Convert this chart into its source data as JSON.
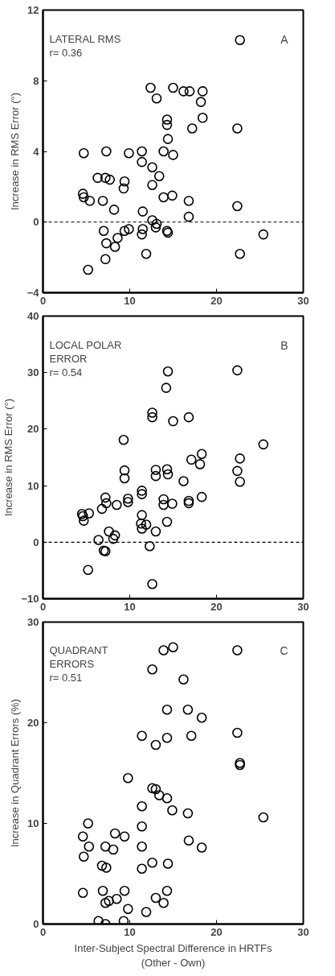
{
  "chart_data": [
    {
      "type": "scatter",
      "ylabel": "Increase in RMS Error (°)",
      "annotations": [
        "LATERAL RMS",
        "r= 0.36",
        "A"
      ],
      "marker": "circle",
      "grid": false,
      "xlim": [
        0,
        30
      ],
      "xticks": [
        0,
        10,
        20,
        30
      ],
      "ylim": [
        -4,
        12
      ],
      "yticks": [
        -4,
        0,
        4,
        8,
        12
      ],
      "ref_lines": [
        {
          "axis": "y",
          "value": 0,
          "line_style": "dashed"
        }
      ],
      "series": [
        {
          "color": "#000000",
          "x": [
            22.7,
            12.4,
            15.0,
            16.2,
            16.9,
            18.4,
            13.1,
            18.2,
            18.4,
            14.3,
            14.3,
            17.2,
            22.4,
            14.4,
            4.7,
            7.3,
            9.9,
            11.4,
            13.9,
            15.0,
            11.4,
            12.6,
            13.4,
            6.3,
            7.2,
            7.7,
            9.4,
            9.3,
            12.6,
            4.6,
            4.7,
            5.4,
            6.9,
            13.9,
            14.9,
            16.8,
            22.4,
            8.2,
            11.5,
            16.8,
            12.6,
            13.1,
            13.0,
            7.0,
            9.4,
            9.9,
            11.5,
            14.3,
            14.4,
            11.4,
            25.4,
            8.6,
            7.3,
            8.3,
            11.9,
            22.7,
            7.2,
            5.2
          ],
          "values": [
            10.3,
            7.6,
            7.6,
            7.4,
            7.4,
            7.4,
            7.0,
            6.8,
            5.9,
            5.8,
            5.5,
            5.3,
            5.3,
            4.7,
            3.9,
            4.0,
            3.9,
            4.0,
            4.0,
            3.8,
            3.4,
            3.1,
            2.6,
            2.5,
            2.5,
            2.4,
            2.3,
            1.9,
            2.1,
            1.6,
            1.4,
            1.2,
            1.2,
            1.4,
            1.5,
            1.2,
            0.9,
            0.7,
            0.6,
            0.3,
            0.1,
            -0.1,
            -0.3,
            -0.5,
            -0.5,
            -0.4,
            -0.4,
            -0.5,
            -0.6,
            -0.7,
            -0.7,
            -0.9,
            -1.2,
            -1.4,
            -1.8,
            -1.8,
            -2.1,
            -2.7
          ]
        }
      ]
    },
    {
      "type": "scatter",
      "ylabel": "Increase in RMS Error (°)",
      "annotations": [
        "LOCAL POLAR ERROR",
        "r= 0.54",
        "B"
      ],
      "marker": "circle",
      "grid": false,
      "xlim": [
        0,
        30
      ],
      "xticks": [
        0,
        10,
        20,
        30
      ],
      "ylim": [
        -10,
        40
      ],
      "yticks": [
        -10,
        0,
        10,
        20,
        30,
        40
      ],
      "ref_lines": [
        {
          "axis": "y",
          "value": 0,
          "line_style": "dashed"
        }
      ],
      "series": [
        {
          "color": "#000000",
          "x": [
            14.4,
            22.4,
            14.2,
            12.6,
            12.6,
            16.8,
            15.0,
            9.3,
            25.4,
            18.3,
            17.1,
            22.7,
            18.1,
            9.4,
            13.0,
            14.3,
            22.4,
            14.4,
            13.0,
            9.4,
            22.7,
            16.2,
            11.4,
            11.4,
            7.2,
            9.8,
            9.8,
            18.3,
            13.9,
            13.9,
            14.9,
            16.8,
            16.8,
            7.3,
            8.5,
            6.8,
            5.3,
            4.5,
            4.6,
            4.7,
            11.4,
            14.3,
            11.3,
            11.9,
            11.4,
            13.0,
            7.6,
            8.3,
            8.1,
            6.4,
            12.3,
            7.0,
            7.2,
            5.2,
            12.6
          ],
          "values": [
            30.2,
            30.4,
            27.3,
            22.9,
            22.1,
            22.1,
            21.4,
            18.1,
            17.3,
            15.6,
            14.6,
            14.8,
            13.8,
            12.7,
            12.8,
            12.9,
            12.6,
            12.0,
            11.7,
            11.3,
            10.7,
            10.8,
            9.1,
            8.5,
            7.9,
            7.7,
            7.1,
            8.0,
            7.6,
            6.6,
            6.8,
            7.3,
            6.9,
            6.9,
            6.6,
            5.9,
            5.1,
            5.0,
            4.6,
            3.8,
            4.8,
            3.6,
            3.3,
            3.1,
            2.4,
            1.9,
            1.9,
            1.2,
            0.6,
            0.4,
            -0.7,
            -1.5,
            -1.6,
            -4.9,
            -7.4
          ]
        }
      ]
    },
    {
      "type": "scatter",
      "ylabel": "Increase in Quadrant Errors (%)",
      "xlabel": "Inter-Subject Spectral Difference in HRTFs\n(Other - Own)",
      "annotations": [
        "QUADRANT ERRORS",
        "r= 0.51",
        "C"
      ],
      "marker": "circle",
      "grid": false,
      "xlim": [
        0,
        30
      ],
      "xticks": [
        0,
        10,
        20,
        30
      ],
      "ylim": [
        0,
        30
      ],
      "yticks": [
        0,
        10,
        20,
        30
      ],
      "series": [
        {
          "color": "#000000",
          "x": [
            15.0,
            13.9,
            22.4,
            12.6,
            16.2,
            14.3,
            16.7,
            18.3,
            11.4,
            14.3,
            17.1,
            13.0,
            22.4,
            22.7,
            22.7,
            9.8,
            12.6,
            13.0,
            13.4,
            14.3,
            14.9,
            11.4,
            16.7,
            25.4,
            5.2,
            4.6,
            8.3,
            9.4,
            11.4,
            5.3,
            7.2,
            8.1,
            4.7,
            11.4,
            16.8,
            18.3,
            12.6,
            6.8,
            7.3,
            11.4,
            14.4,
            4.6,
            6.9,
            9.4,
            14.3,
            13.0,
            8.5,
            7.6,
            7.2,
            13.9,
            9.8,
            11.9,
            6.4,
            7.2,
            9.3
          ],
          "values": [
            27.5,
            27.2,
            27.2,
            25.3,
            24.3,
            21.3,
            21.3,
            20.5,
            18.7,
            18.5,
            18.7,
            17.8,
            19.0,
            16.0,
            15.8,
            14.5,
            13.5,
            13.4,
            12.8,
            12.5,
            11.3,
            11.7,
            11.0,
            10.6,
            10.0,
            8.7,
            9.0,
            8.7,
            9.7,
            7.7,
            7.7,
            7.4,
            6.7,
            7.7,
            8.3,
            7.6,
            6.1,
            5.8,
            5.6,
            5.5,
            6.0,
            3.1,
            3.3,
            3.3,
            3.3,
            2.6,
            2.5,
            2.3,
            2.1,
            2.1,
            1.5,
            1.2,
            0.3,
            0.0,
            0.3
          ]
        }
      ]
    }
  ]
}
